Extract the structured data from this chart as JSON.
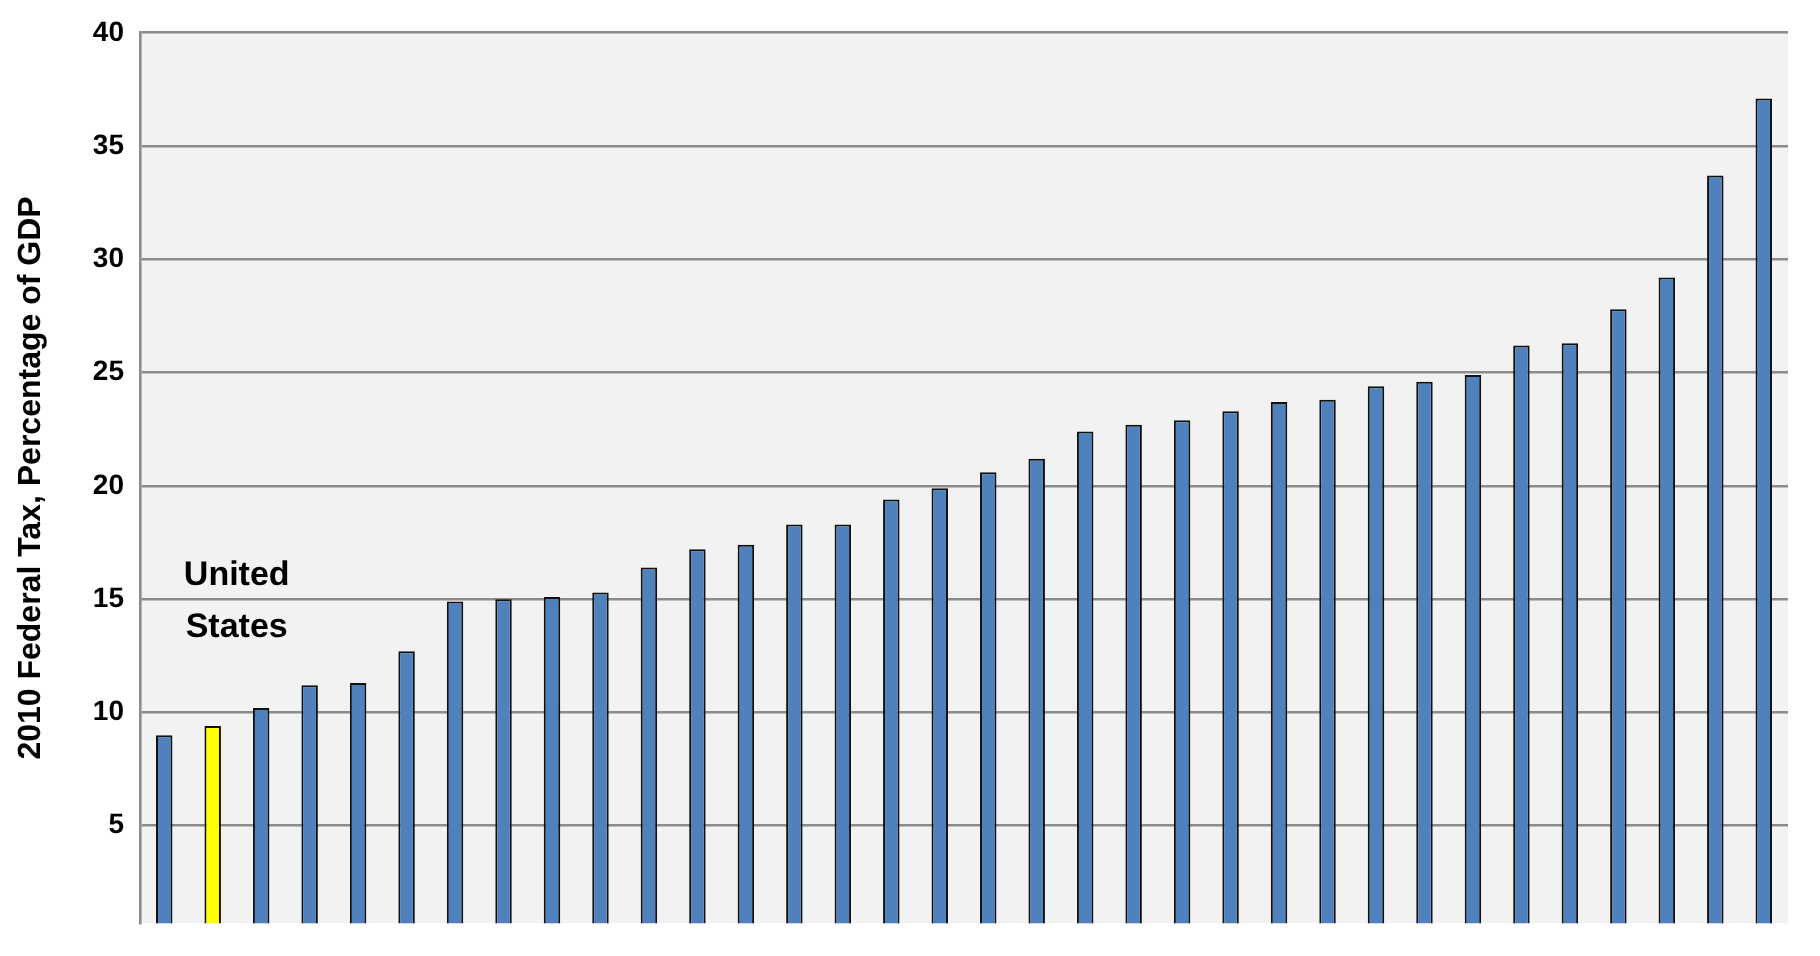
{
  "chart_data": {
    "type": "bar",
    "ylabel": "2010 Federal Tax, Percentage of GDP",
    "categories": [
      null,
      null,
      null,
      null,
      null,
      null,
      null,
      null,
      null,
      null,
      null,
      null,
      null,
      null,
      null,
      null,
      null,
      null,
      null,
      null,
      null,
      null,
      null,
      null,
      null,
      null,
      null,
      null,
      null,
      null,
      null,
      null,
      null,
      null
    ],
    "values": [
      9.0,
      9.4,
      10.2,
      11.2,
      11.3,
      12.7,
      14.9,
      15.0,
      15.1,
      15.3,
      16.4,
      17.2,
      17.4,
      18.3,
      18.3,
      19.4,
      19.9,
      20.6,
      21.2,
      22.4,
      22.7,
      22.9,
      23.3,
      23.7,
      23.8,
      24.4,
      24.6,
      24.9,
      26.2,
      26.3,
      27.8,
      29.2,
      33.7,
      37.1
    ],
    "colors": [
      "#4f81bd",
      "#ffff00",
      "#4f81bd",
      "#4f81bd",
      "#4f81bd",
      "#4f81bd",
      "#4f81bd",
      "#4f81bd",
      "#4f81bd",
      "#4f81bd",
      "#4f81bd",
      "#4f81bd",
      "#4f81bd",
      "#4f81bd",
      "#4f81bd",
      "#4f81bd",
      "#4f81bd",
      "#4f81bd",
      "#4f81bd",
      "#4f81bd",
      "#4f81bd",
      "#4f81bd",
      "#4f81bd",
      "#4f81bd",
      "#4f81bd",
      "#4f81bd",
      "#4f81bd",
      "#4f81bd",
      "#4f81bd",
      "#4f81bd",
      "#4f81bd",
      "#4f81bd",
      "#4f81bd",
      "#4f81bd"
    ],
    "ylim": [
      0.7,
      40
    ],
    "yticks": [
      5,
      10,
      15,
      20,
      25,
      30,
      35,
      40
    ],
    "grid": "y",
    "tick_labels": "y",
    "annotations": [
      "United States"
    ]
  }
}
